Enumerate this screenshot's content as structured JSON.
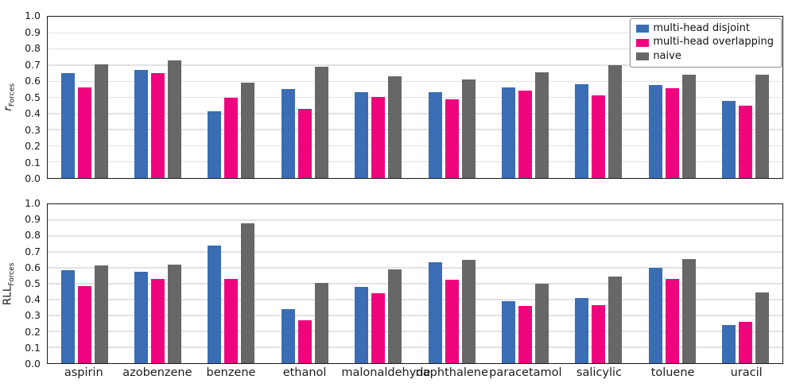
{
  "figure": {
    "background": "#ffffff",
    "axis_color": "#1a1a1a",
    "grid_color": "#e2e2e6"
  },
  "legend": {
    "position": "top-right",
    "items": [
      {
        "label": "multi-head disjoint",
        "color": "#3A6DB3"
      },
      {
        "label": "multi-head overlapping",
        "color": "#EF047E"
      },
      {
        "label": "naive",
        "color": "#676767"
      }
    ]
  },
  "categories": [
    "aspirin",
    "azobenzene",
    "benzene",
    "ethanol",
    "malonaldehyde",
    "naphthalene",
    "paracetamol",
    "salicylic",
    "toluene",
    "uracil"
  ],
  "chart_data": [
    {
      "type": "bar",
      "panel": "top",
      "ylabel": {
        "main": "r",
        "main_style": "italic",
        "sub": "Forces"
      },
      "ylim": [
        0,
        1
      ],
      "ytick_step": 0.1,
      "yticks": [
        "0.0",
        "0.1",
        "0.2",
        "0.3",
        "0.4",
        "0.5",
        "0.6",
        "0.7",
        "0.8",
        "0.9",
        "1.0"
      ],
      "grid": "horizontal",
      "legend_position": "upper right",
      "categories": [
        "aspirin",
        "azobenzene",
        "benzene",
        "ethanol",
        "malonaldehyde",
        "naphthalene",
        "paracetamol",
        "salicylic",
        "toluene",
        "uracil"
      ],
      "series": [
        {
          "name": "multi-head disjoint",
          "color": "#3A6DB3",
          "values": [
            0.65,
            0.67,
            0.415,
            0.55,
            0.53,
            0.53,
            0.56,
            0.58,
            0.575,
            0.48
          ]
        },
        {
          "name": "multi-head overlapping",
          "color": "#EF047E",
          "values": [
            0.56,
            0.65,
            0.5,
            0.43,
            0.505,
            0.49,
            0.54,
            0.51,
            0.555,
            0.45
          ]
        },
        {
          "name": "naive",
          "color": "#676767",
          "values": [
            0.705,
            0.73,
            0.59,
            0.69,
            0.63,
            0.61,
            0.655,
            0.7,
            0.64,
            0.64
          ]
        }
      ],
      "show_x_labels": false,
      "legend_visible": true
    },
    {
      "type": "bar",
      "panel": "bottom",
      "ylabel": {
        "main": "RLL",
        "main_style": "normal",
        "sub": "Forces"
      },
      "ylim": [
        0,
        1
      ],
      "ytick_step": 0.1,
      "yticks": [
        "0.0",
        "0.1",
        "0.2",
        "0.3",
        "0.4",
        "0.5",
        "0.6",
        "0.7",
        "0.8",
        "0.9",
        "1.0"
      ],
      "grid": "horizontal",
      "categories": [
        "aspirin",
        "azobenzene",
        "benzene",
        "ethanol",
        "malonaldehyde",
        "naphthalene",
        "paracetamol",
        "salicylic",
        "toluene",
        "uracil"
      ],
      "series": [
        {
          "name": "multi-head disjoint",
          "color": "#3A6DB3",
          "values": [
            0.585,
            0.575,
            0.74,
            0.34,
            0.48,
            0.635,
            0.39,
            0.41,
            0.6,
            0.24
          ]
        },
        {
          "name": "multi-head overlapping",
          "color": "#EF047E",
          "values": [
            0.485,
            0.53,
            0.53,
            0.27,
            0.44,
            0.525,
            0.36,
            0.365,
            0.53,
            0.26
          ]
        },
        {
          "name": "naive",
          "color": "#676767",
          "values": [
            0.615,
            0.62,
            0.88,
            0.505,
            0.59,
            0.65,
            0.5,
            0.545,
            0.655,
            0.445
          ]
        }
      ],
      "show_x_labels": true,
      "legend_visible": false
    }
  ]
}
